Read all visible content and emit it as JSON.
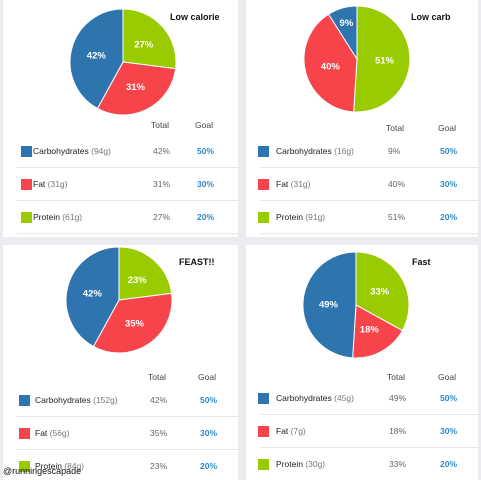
{
  "chart_data": [
    {
      "type": "pie",
      "title": "Low calorie",
      "series": [
        {
          "name": "Carbohydrates",
          "grams": "94g",
          "value": 42,
          "goal": "50%",
          "total_label": "42%",
          "pie_label": "42%",
          "color": "#2e75b0"
        },
        {
          "name": "Fat",
          "grams": "31g",
          "value": 31,
          "goal": "30%",
          "total_label": "31%",
          "pie_label": "31%",
          "color": "#f7434a"
        },
        {
          "name": "Protein",
          "grams": "61g",
          "value": 27,
          "goal": "20%",
          "total_label": "27%",
          "pie_label": "27%",
          "color": "#99cc00"
        }
      ],
      "headers": {
        "total": "Total",
        "goal": "Goal"
      }
    },
    {
      "type": "pie",
      "title": "Low carb",
      "series": [
        {
          "name": "Carbohydrates",
          "grams": "16g",
          "value": 9,
          "goal": "50%",
          "total_label": "9%",
          "pie_label": "9%",
          "color": "#2e75b0"
        },
        {
          "name": "Fat",
          "grams": "31g",
          "value": 40,
          "goal": "30%",
          "total_label": "40%",
          "pie_label": "40%",
          "color": "#f7434a"
        },
        {
          "name": "Protein",
          "grams": "91g",
          "value": 51,
          "goal": "20%",
          "total_label": "51%",
          "pie_label": "51%",
          "color": "#99cc00"
        }
      ],
      "headers": {
        "total": "Total",
        "goal": "Goal"
      }
    },
    {
      "type": "pie",
      "title": "FEAST!!",
      "series": [
        {
          "name": "Carbohydrates",
          "grams": "152g",
          "value": 42,
          "goal": "50%",
          "total_label": "42%",
          "pie_label": "42%",
          "color": "#2e75b0"
        },
        {
          "name": "Fat",
          "grams": "56g",
          "value": 35,
          "goal": "30%",
          "total_label": "35%",
          "pie_label": "35%",
          "color": "#f7434a"
        },
        {
          "name": "Protein",
          "grams": "84g",
          "value": 23,
          "goal": "20%",
          "total_label": "23%",
          "pie_label": "23%",
          "color": "#99cc00"
        }
      ],
      "headers": {
        "total": "Total",
        "goal": "Goal"
      }
    },
    {
      "type": "pie",
      "title": "Fast",
      "series": [
        {
          "name": "Carbohydrates",
          "grams": "45g",
          "value": 49,
          "goal": "50%",
          "total_label": "49%",
          "pie_label": "49%",
          "color": "#2e75b0"
        },
        {
          "name": "Fat",
          "grams": "7g",
          "value": 18,
          "goal": "30%",
          "total_label": "18%",
          "pie_label": "18%",
          "color": "#f7434a"
        },
        {
          "name": "Protein",
          "grams": "30g",
          "value": 33,
          "goal": "20%",
          "total_label": "33%",
          "pie_label": "33%",
          "color": "#99cc00"
        }
      ],
      "headers": {
        "total": "Total",
        "goal": "Goal"
      }
    }
  ],
  "credit": "@runningescapade"
}
